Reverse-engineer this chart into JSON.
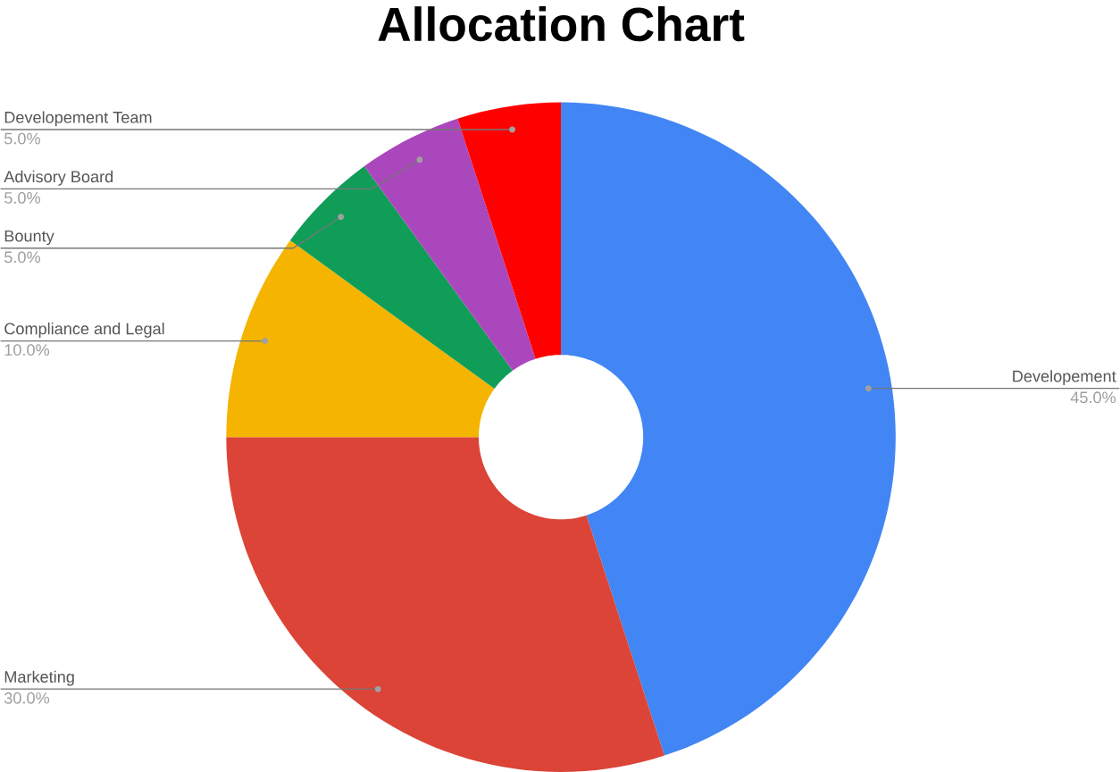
{
  "chart_data": {
    "type": "donut",
    "title": "Allocation Chart",
    "categories": [
      "Developement",
      "Marketing",
      "Compliance and Legal",
      "Bounty",
      "Advisory Board",
      "Developement Team"
    ],
    "values": [
      45,
      30,
      10,
      5,
      5,
      5
    ],
    "colors": [
      "#4285f4",
      "#db4437",
      "#f4b400",
      "#0f9d58",
      "#ab47bc",
      "#ff0000"
    ],
    "value_labels": [
      "45.0%",
      "30.0%",
      "10.0%",
      "5.0%",
      "5.0%",
      "5.0%"
    ],
    "legend": false
  }
}
